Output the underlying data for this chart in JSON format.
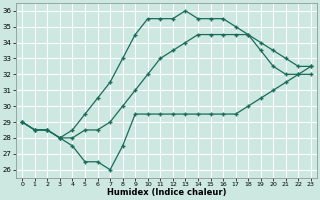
{
  "xlabel": "Humidex (Indice chaleur)",
  "bg_color": "#cce8e0",
  "line_color": "#1a6b5a",
  "grid_color": "#ffffff",
  "xlim": [
    -0.5,
    23.5
  ],
  "ylim": [
    25.5,
    36.5
  ],
  "xticks": [
    0,
    1,
    2,
    3,
    4,
    5,
    6,
    7,
    8,
    9,
    10,
    11,
    12,
    13,
    14,
    15,
    16,
    17,
    18,
    19,
    20,
    21,
    22,
    23
  ],
  "yticks": [
    26,
    27,
    28,
    29,
    30,
    31,
    32,
    33,
    34,
    35,
    36
  ],
  "line1_x": [
    0,
    1,
    2,
    3,
    4,
    5,
    6,
    7,
    8,
    9,
    10,
    11,
    12,
    13,
    14,
    15,
    16,
    17,
    18,
    19,
    20,
    21,
    22,
    23
  ],
  "line1_y": [
    29.0,
    28.5,
    28.5,
    28.0,
    27.5,
    26.5,
    26.5,
    26.0,
    27.5,
    29.5,
    29.5,
    29.5,
    29.5,
    29.5,
    29.5,
    29.5,
    29.5,
    29.5,
    30.0,
    30.5,
    31.0,
    31.5,
    32.0,
    32.5
  ],
  "line2_x": [
    0,
    1,
    2,
    3,
    4,
    5,
    6,
    7,
    8,
    9,
    10,
    11,
    12,
    13,
    14,
    15,
    16,
    17,
    18,
    19,
    20,
    21,
    22,
    23
  ],
  "line2_y": [
    29.0,
    28.5,
    28.5,
    28.0,
    28.0,
    28.5,
    28.5,
    29.0,
    30.0,
    31.0,
    32.0,
    33.0,
    33.5,
    34.0,
    34.5,
    34.5,
    34.5,
    34.5,
    34.5,
    34.0,
    33.5,
    33.0,
    32.5,
    32.5
  ],
  "line3_x": [
    0,
    1,
    2,
    3,
    4,
    5,
    6,
    7,
    8,
    9,
    10,
    11,
    12,
    13,
    14,
    15,
    16,
    17,
    18,
    19,
    20,
    21,
    22,
    23
  ],
  "line3_y": [
    29.0,
    28.5,
    28.5,
    28.0,
    28.5,
    29.5,
    30.5,
    31.5,
    33.0,
    34.5,
    35.5,
    35.5,
    35.5,
    36.0,
    35.5,
    35.5,
    35.5,
    35.0,
    34.5,
    33.5,
    32.5,
    32.0,
    32.0,
    32.0
  ]
}
